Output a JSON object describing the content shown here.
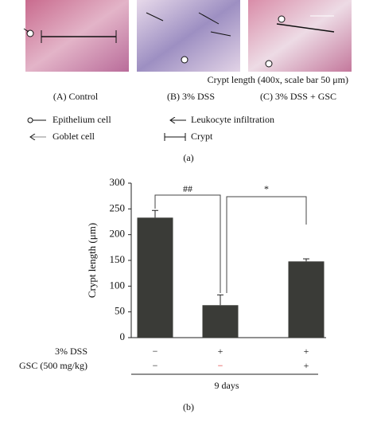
{
  "figure_a": {
    "caption": "Crypt length (400x, scale bar 50 μm)",
    "panels": [
      "(A) Control",
      "(B) 3% DSS",
      "(C) 3% DSS + GSC"
    ],
    "legend": [
      "Epithelium cell",
      "Leukocyte infiltration",
      "Goblet cell",
      "Crypt"
    ],
    "label": "(a)"
  },
  "chart_data": {
    "type": "bar",
    "ylabel": "Crypt length (μm)",
    "categories": [
      null,
      null,
      null
    ],
    "values": [
      233,
      63,
      148
    ],
    "errors": [
      14,
      20,
      5
    ],
    "color": "#3a3b37",
    "ylim": [
      0,
      300
    ],
    "yticks": [
      0,
      50,
      100,
      150,
      200,
      250,
      300
    ],
    "annotations": [
      "##",
      "*"
    ],
    "rows": [
      {
        "name": "3% DSS",
        "marks": [
          "−",
          "+",
          "+"
        ]
      },
      {
        "name": "GSC (500 mg/kg)",
        "marks": [
          "−",
          "−",
          "+"
        ]
      }
    ],
    "duration": "9 days",
    "label": "(b)"
  }
}
